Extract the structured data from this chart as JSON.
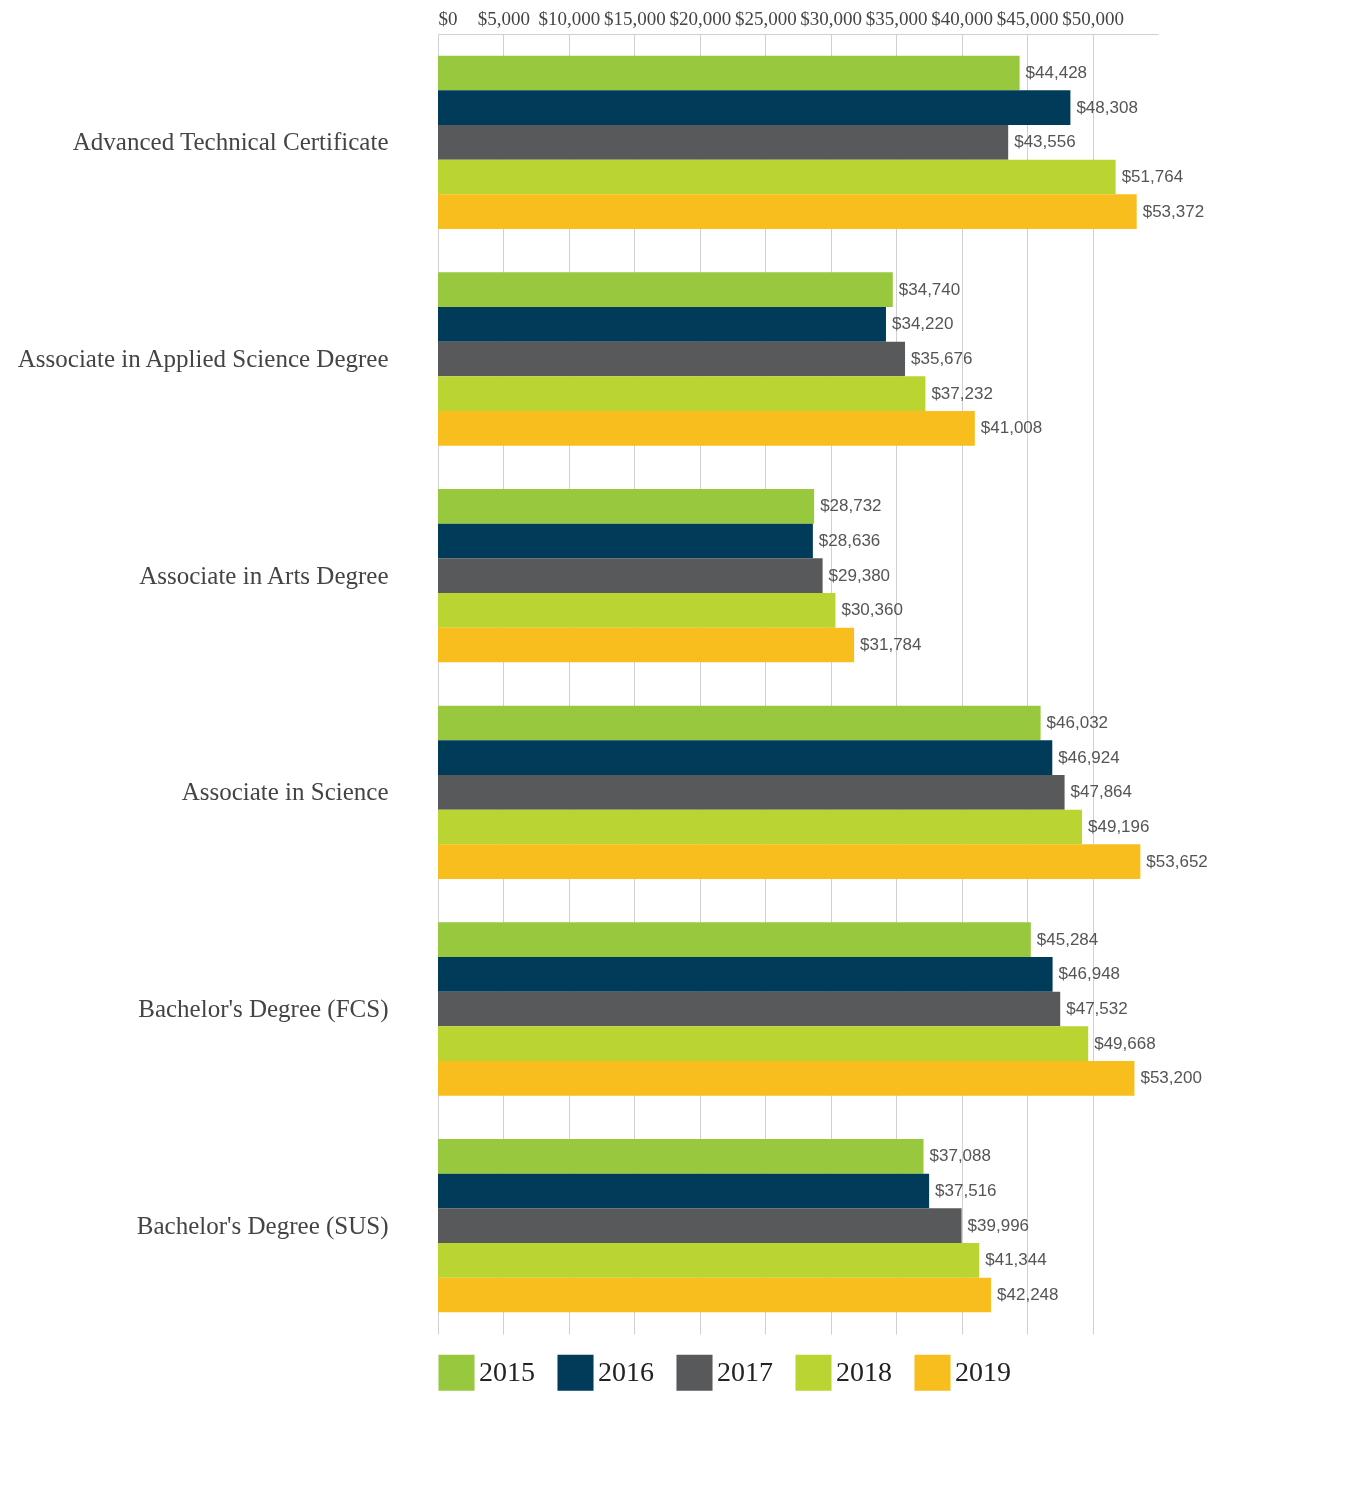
{
  "chart_data": {
    "type": "bar",
    "orientation": "horizontal",
    "categories": [
      "Advanced Technical Certificate",
      "Associate in Applied Science Degree",
      "Associate in Arts Degree",
      "Associate in Science",
      "Bachelor's Degree (FCS)",
      "Bachelor's Degree (SUS)"
    ],
    "series": [
      {
        "name": "2015",
        "color": "#97c83d",
        "values": [
          44428,
          34740,
          28732,
          46032,
          45284,
          37088
        ],
        "value_labels": [
          "$44,428",
          "$34,740",
          "$28,732",
          "$46,032",
          "$45,284",
          "$37,088"
        ]
      },
      {
        "name": "2016",
        "color": "#003b5a",
        "values": [
          48308,
          34220,
          28636,
          46924,
          46948,
          37516
        ],
        "value_labels": [
          "$48,308",
          "$34,220",
          "$28,636",
          "$46,924",
          "$46,948",
          "$37,516"
        ]
      },
      {
        "name": "2017",
        "color": "#58595b",
        "values": [
          43556,
          35676,
          29380,
          47864,
          47532,
          39996
        ],
        "value_labels": [
          "$43,556",
          "$35,676",
          "$29,380",
          "$47,864",
          "$47,532",
          "$39,996"
        ]
      },
      {
        "name": "2018",
        "color": "#bad532",
        "values": [
          51764,
          37232,
          30360,
          49196,
          49668,
          41344
        ],
        "value_labels": [
          "$51,764",
          "$37,232",
          "$30,360",
          "$49,196",
          "$49,668",
          "$41,344"
        ]
      },
      {
        "name": "2019",
        "color": "#f7be1d",
        "values": [
          53372,
          41008,
          31784,
          53652,
          53200,
          42248
        ],
        "value_labels": [
          "$53,372",
          "$41,008",
          "$31,784",
          "$53,652",
          "$53,200",
          "$42,248"
        ]
      }
    ],
    "xlim": [
      0,
      55000
    ],
    "xticks": [
      {
        "value": 0,
        "label": "$0"
      },
      {
        "value": 5000,
        "label": "$5,000"
      },
      {
        "value": 10000,
        "label": "$10,000"
      },
      {
        "value": 15000,
        "label": "$15,000"
      },
      {
        "value": 20000,
        "label": "$20,000"
      },
      {
        "value": 25000,
        "label": "$25,000"
      },
      {
        "value": 30000,
        "label": "$30,000"
      },
      {
        "value": 35000,
        "label": "$35,000"
      },
      {
        "value": 40000,
        "label": "$40,000"
      },
      {
        "value": 45000,
        "label": "$45,000"
      },
      {
        "value": 50000,
        "label": "$50,000"
      }
    ],
    "grid": "x",
    "legend": "bottom"
  }
}
